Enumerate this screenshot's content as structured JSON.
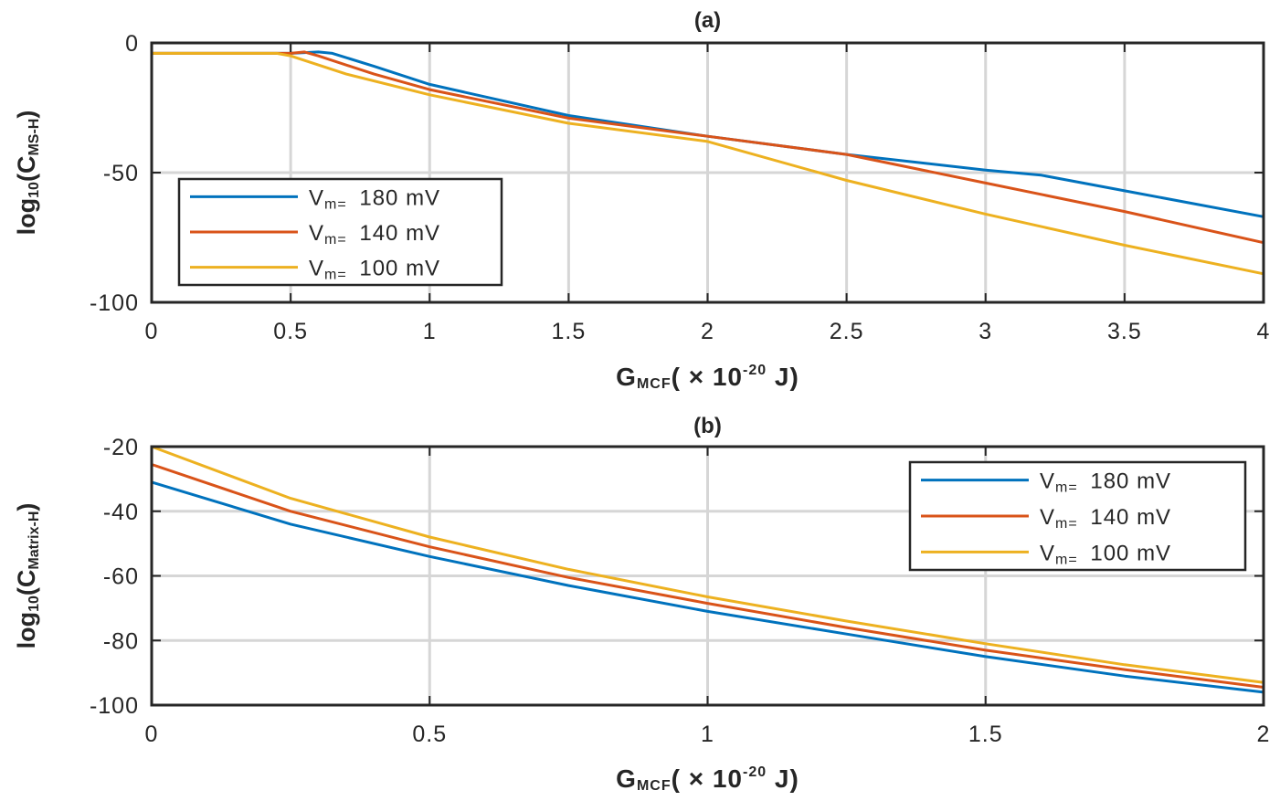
{
  "chart_data": [
    {
      "id": "a",
      "type": "line",
      "title": "(a)",
      "xlabel": {
        "main": "G",
        "sub": "MCF",
        "rest": "( ×  10",
        "sup": "-20",
        "unit": " J)"
      },
      "ylabel": {
        "pre": "log",
        "sub1": "10",
        "mid": "(C",
        "sub2": "MS-H",
        "post": ")"
      },
      "xlim": [
        0,
        4
      ],
      "ylim": [
        -100,
        0
      ],
      "xticks": [
        0,
        0.5,
        1,
        1.5,
        2,
        2.5,
        3,
        3.5,
        4
      ],
      "xtick_labels": [
        "0",
        "0.5",
        "1",
        "1.5",
        "2",
        "2.5",
        "3",
        "3.5",
        "4"
      ],
      "yticks": [
        0,
        -50,
        -100
      ],
      "ytick_labels": [
        "0",
        "-50",
        "-100"
      ],
      "grid": true,
      "legend_position": "bottom-left",
      "series": [
        {
          "name": "180 mV",
          "label_prefix": "V",
          "label_sub": "m=",
          "label_value": "180  mV",
          "color": "#0072BD",
          "x": [
            0,
            0.5,
            0.6,
            0.65,
            0.8,
            1.0,
            1.5,
            2.0,
            2.5,
            3.0,
            3.2,
            3.5,
            4.0
          ],
          "y": [
            -4,
            -4,
            -3.5,
            -4,
            -9,
            -16,
            -28,
            -36,
            -43,
            -49,
            -51,
            -57,
            -67
          ]
        },
        {
          "name": "140 mV",
          "label_prefix": "V",
          "label_sub": "m=",
          "label_value": "140  mV",
          "color": "#D95319",
          "x": [
            0,
            0.5,
            0.55,
            0.6,
            0.8,
            1.0,
            1.5,
            2.0,
            2.5,
            3.0,
            3.5,
            4.0
          ],
          "y": [
            -4,
            -4,
            -3.5,
            -5,
            -12,
            -18,
            -29,
            -36,
            -43,
            -54,
            -65,
            -77
          ]
        },
        {
          "name": "100 mV",
          "label_prefix": "V",
          "label_sub": "m=",
          "label_value": "100  mV",
          "color": "#EDB120",
          "x": [
            0,
            0.45,
            0.5,
            0.7,
            1.0,
            1.5,
            2.0,
            2.5,
            3.0,
            3.5,
            4.0
          ],
          "y": [
            -4,
            -4,
            -5,
            -12,
            -20,
            -31,
            -38,
            -53,
            -66,
            -78,
            -89
          ]
        }
      ]
    },
    {
      "id": "b",
      "type": "line",
      "title": "(b)",
      "xlabel": {
        "main": "G",
        "sub": "MCF",
        "rest": "( ×  10",
        "sup": "-20",
        "unit": " J)"
      },
      "ylabel": {
        "pre": "log",
        "sub1": "10",
        "mid": "(C",
        "sub2": "Matrix-H",
        "post": ")"
      },
      "xlim": [
        0,
        2
      ],
      "ylim": [
        -100,
        -20
      ],
      "xticks": [
        0,
        0.5,
        1,
        1.5,
        2
      ],
      "xtick_labels": [
        "0",
        "0.5",
        "1",
        "1.5",
        "2"
      ],
      "yticks": [
        -20,
        -40,
        -60,
        -80,
        -100
      ],
      "ytick_labels": [
        "-20",
        "-40",
        "-60",
        "-80",
        "-100"
      ],
      "grid": true,
      "legend_position": "top-right",
      "series": [
        {
          "name": "180 mV",
          "label_prefix": "V",
          "label_sub": "m=",
          "label_value": "180  mV",
          "color": "#0072BD",
          "x": [
            0,
            0.25,
            0.5,
            0.75,
            1.0,
            1.25,
            1.5,
            1.75,
            2.0
          ],
          "y": [
            -31,
            -44,
            -54,
            -63,
            -71,
            -78,
            -85,
            -91,
            -96
          ]
        },
        {
          "name": "140 mV",
          "label_prefix": "V",
          "label_sub": "m=",
          "label_value": "140  mV",
          "color": "#D95319",
          "x": [
            0,
            0.25,
            0.5,
            0.75,
            1.0,
            1.25,
            1.5,
            1.75,
            2.0
          ],
          "y": [
            -25.5,
            -40,
            -51,
            -60.5,
            -68.5,
            -76,
            -83,
            -89,
            -94.5
          ]
        },
        {
          "name": "100 mV",
          "label_prefix": "V",
          "label_sub": "m=",
          "label_value": "100  mV",
          "color": "#EDB120",
          "x": [
            0,
            0.25,
            0.5,
            0.75,
            1.0,
            1.25,
            1.5,
            1.75,
            2.0
          ],
          "y": [
            -20,
            -36,
            -48,
            -58,
            -66.5,
            -74,
            -81,
            -87.5,
            -93
          ]
        }
      ]
    }
  ]
}
